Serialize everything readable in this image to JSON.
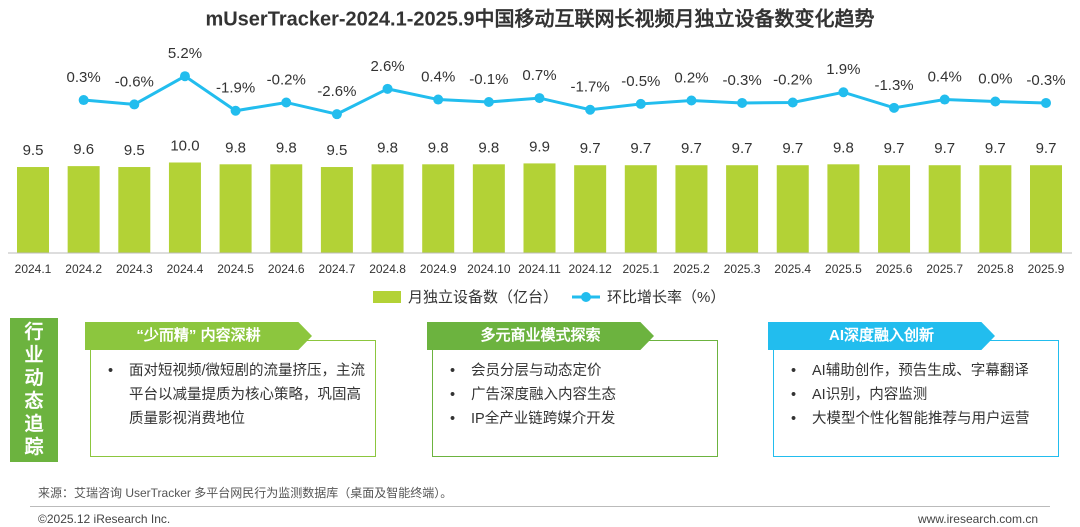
{
  "chart_data": {
    "type": "bar-line",
    "title": "mUserTracker-2024.1-2025.9中国移动互联网长视频月独立设备数变化趋势",
    "categories": [
      "2024.1",
      "2024.2",
      "2024.3",
      "2024.4",
      "2024.5",
      "2024.6",
      "2024.7",
      "2024.8",
      "2024.9",
      "2024.10",
      "2024.11",
      "2024.12",
      "2025.1",
      "2025.2",
      "2025.3",
      "2025.4",
      "2025.5",
      "2025.6",
      "2025.7",
      "2025.8",
      "2025.9"
    ],
    "series": [
      {
        "name": "月独立设备数（亿台）",
        "type": "bar",
        "color": "#b3d236",
        "values": [
          9.5,
          9.6,
          9.5,
          10.0,
          9.8,
          9.8,
          9.5,
          9.8,
          9.8,
          9.8,
          9.9,
          9.7,
          9.7,
          9.7,
          9.7,
          9.7,
          9.8,
          9.7,
          9.7,
          9.7,
          9.7
        ],
        "value_labels": [
          "9.5",
          "9.6",
          "9.5",
          "10.0",
          "9.8",
          "9.8",
          "9.5",
          "9.8",
          "9.8",
          "9.8",
          "9.9",
          "9.7",
          "9.7",
          "9.7",
          "9.7",
          "9.7",
          "9.8",
          "9.7",
          "9.7",
          "9.7",
          "9.7"
        ]
      },
      {
        "name": "环比增长率（%）",
        "type": "line",
        "axis": "y2",
        "color": "#22bdee",
        "values": [
          null,
          0.3,
          -0.6,
          5.2,
          -1.9,
          -0.2,
          -2.6,
          2.6,
          0.4,
          -0.1,
          0.7,
          -1.7,
          -0.5,
          0.2,
          -0.3,
          -0.2,
          1.9,
          -1.3,
          0.4,
          0.0,
          -0.3
        ],
        "value_labels": [
          null,
          "0.3%",
          "-0.6%",
          "5.2%",
          "-1.9%",
          "-0.2%",
          "-2.6%",
          "2.6%",
          "0.4%",
          "-0.1%",
          "0.7%",
          "-1.7%",
          "-0.5%",
          "0.2%",
          "-0.3%",
          "-0.2%",
          "1.9%",
          "-1.3%",
          "0.4%",
          "0.0%",
          "-0.3%"
        ]
      }
    ],
    "ylim": [
      0,
      10
    ],
    "y2lim": [
      -3,
      6
    ],
    "legend": "bottom"
  },
  "panels": {
    "side_label": "行业动态追踪",
    "items": [
      {
        "title": "“少而精” 内容深耕",
        "color": "#8cc63e",
        "bullets": [
          "面对短视频/微短剧的流量挤压，主流平台以减量提质为核心策略，巩固高质量影视消费地位"
        ]
      },
      {
        "title": "多元商业模式探索",
        "color": "#6cb33f",
        "bullets": [
          "会员分层与动态定价",
          "广告深度融入内容生态",
          "IP全产业链跨媒介开发"
        ]
      },
      {
        "title": "AI深度融入创新",
        "color": "#22bdee",
        "bullets": [
          "AI辅助创作，预告生成、字幕翻译",
          "AI识别，内容监测",
          "大模型个性化智能推荐与用户运营"
        ]
      }
    ]
  },
  "source": "来源：艾瑞咨询 UserTracker 多平台网民行为监测数据库（桌面及智能终端）。",
  "footer": {
    "left": "©2025.12 iResearch Inc.",
    "right": "www.iresearch.com.cn"
  }
}
